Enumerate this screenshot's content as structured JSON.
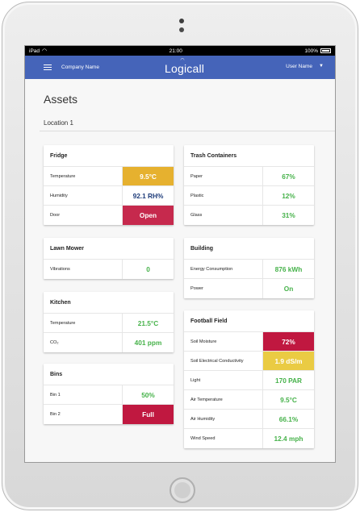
{
  "status_bar": {
    "device": "iPad",
    "time": "21:00",
    "battery": "100%"
  },
  "app_bar": {
    "company": "Company Name",
    "logo": "Logicall",
    "user": "User Name"
  },
  "page": {
    "title": "Assets",
    "location": "Location 1"
  },
  "cards": {
    "fridge": {
      "title": "Fridge",
      "rows": [
        {
          "label": "Temperature",
          "value": "9.5°C"
        },
        {
          "label": "Humidity",
          "value": "92.1 RH%"
        },
        {
          "label": "Door",
          "value": "Open"
        }
      ]
    },
    "lawn_mower": {
      "title": "Lawn Mower",
      "rows": [
        {
          "label": "Vibrations",
          "value": "0"
        }
      ]
    },
    "kitchen": {
      "title": "Kitchen",
      "rows": [
        {
          "label": "Temperature",
          "value": "21.5°C"
        },
        {
          "label": "CO₂",
          "value": "401 ppm"
        }
      ]
    },
    "bins": {
      "title": "Bins",
      "rows": [
        {
          "label": "Bin 1",
          "value": "50%"
        },
        {
          "label": "Bin 2",
          "value": "Full"
        }
      ]
    },
    "trash": {
      "title": "Trash Containers",
      "rows": [
        {
          "label": "Paper",
          "value": "67%"
        },
        {
          "label": "Plastic",
          "value": "12%"
        },
        {
          "label": "Glass",
          "value": "31%"
        }
      ]
    },
    "building": {
      "title": "Building",
      "rows": [
        {
          "label": "Energy Consumption",
          "value": "876 kWh"
        },
        {
          "label": "Power",
          "value": "On"
        }
      ]
    },
    "football": {
      "title": "Football Field",
      "rows": [
        {
          "label": "Soil Moisture",
          "value": "72%"
        },
        {
          "label": "Soil Electrical Conductivity",
          "value": "1.9 dS/m"
        },
        {
          "label": "Light",
          "value": "170 PAR"
        },
        {
          "label": "Air Temperature",
          "value": "9.5°C"
        },
        {
          "label": "Air Humidity",
          "value": "66.1%"
        },
        {
          "label": "Wind Speed",
          "value": "12.4 mph"
        }
      ]
    }
  },
  "colors": {
    "app_bar": "#4564b9",
    "ok": "#46b24a",
    "warning": "#e6b12f",
    "alert": "#c6294d",
    "caution": "#eacb43"
  }
}
